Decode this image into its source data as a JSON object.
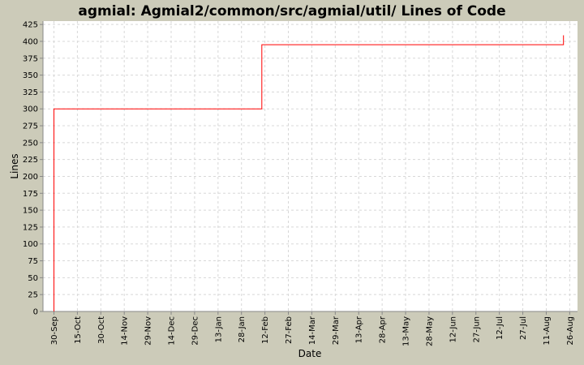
{
  "chart_data": {
    "type": "line",
    "title": "agmial: Agmial2/common/src/agmial/util/ Lines of Code",
    "xlabel": "Date",
    "ylabel": "Lines",
    "ylim": [
      0,
      430
    ],
    "xlim": [
      "23-Sep",
      "31-Aug"
    ],
    "yticks": [
      0,
      25,
      50,
      75,
      100,
      125,
      150,
      175,
      200,
      225,
      250,
      275,
      300,
      325,
      350,
      375,
      400,
      425
    ],
    "xticks": [
      "30-Sep",
      "15-Oct",
      "30-Oct",
      "14-Nov",
      "29-Nov",
      "14-Dec",
      "29-Dec",
      "13-Jan",
      "28-Jan",
      "12-Feb",
      "27-Feb",
      "14-Mar",
      "29-Mar",
      "13-Apr",
      "28-Apr",
      "13-May",
      "28-May",
      "12-Jun",
      "27-Jun",
      "12-Jul",
      "27-Jul",
      "11-Aug",
      "26-Aug"
    ],
    "grid": true,
    "step": true,
    "series": [
      {
        "color": "#ff0000",
        "points": [
          {
            "x": "30-Sep",
            "y": 0
          },
          {
            "x": "30-Sep",
            "y": 300
          },
          {
            "x": "10-Feb",
            "y": 300
          },
          {
            "x": "10-Feb",
            "y": 395
          },
          {
            "x": "22-Aug",
            "y": 395
          },
          {
            "x": "22-Aug",
            "y": 409
          }
        ]
      }
    ],
    "colors": {
      "background": "#cccbb9",
      "plot": "#ffffff",
      "grid": "#d8d8d8",
      "axis": "#888888"
    }
  }
}
